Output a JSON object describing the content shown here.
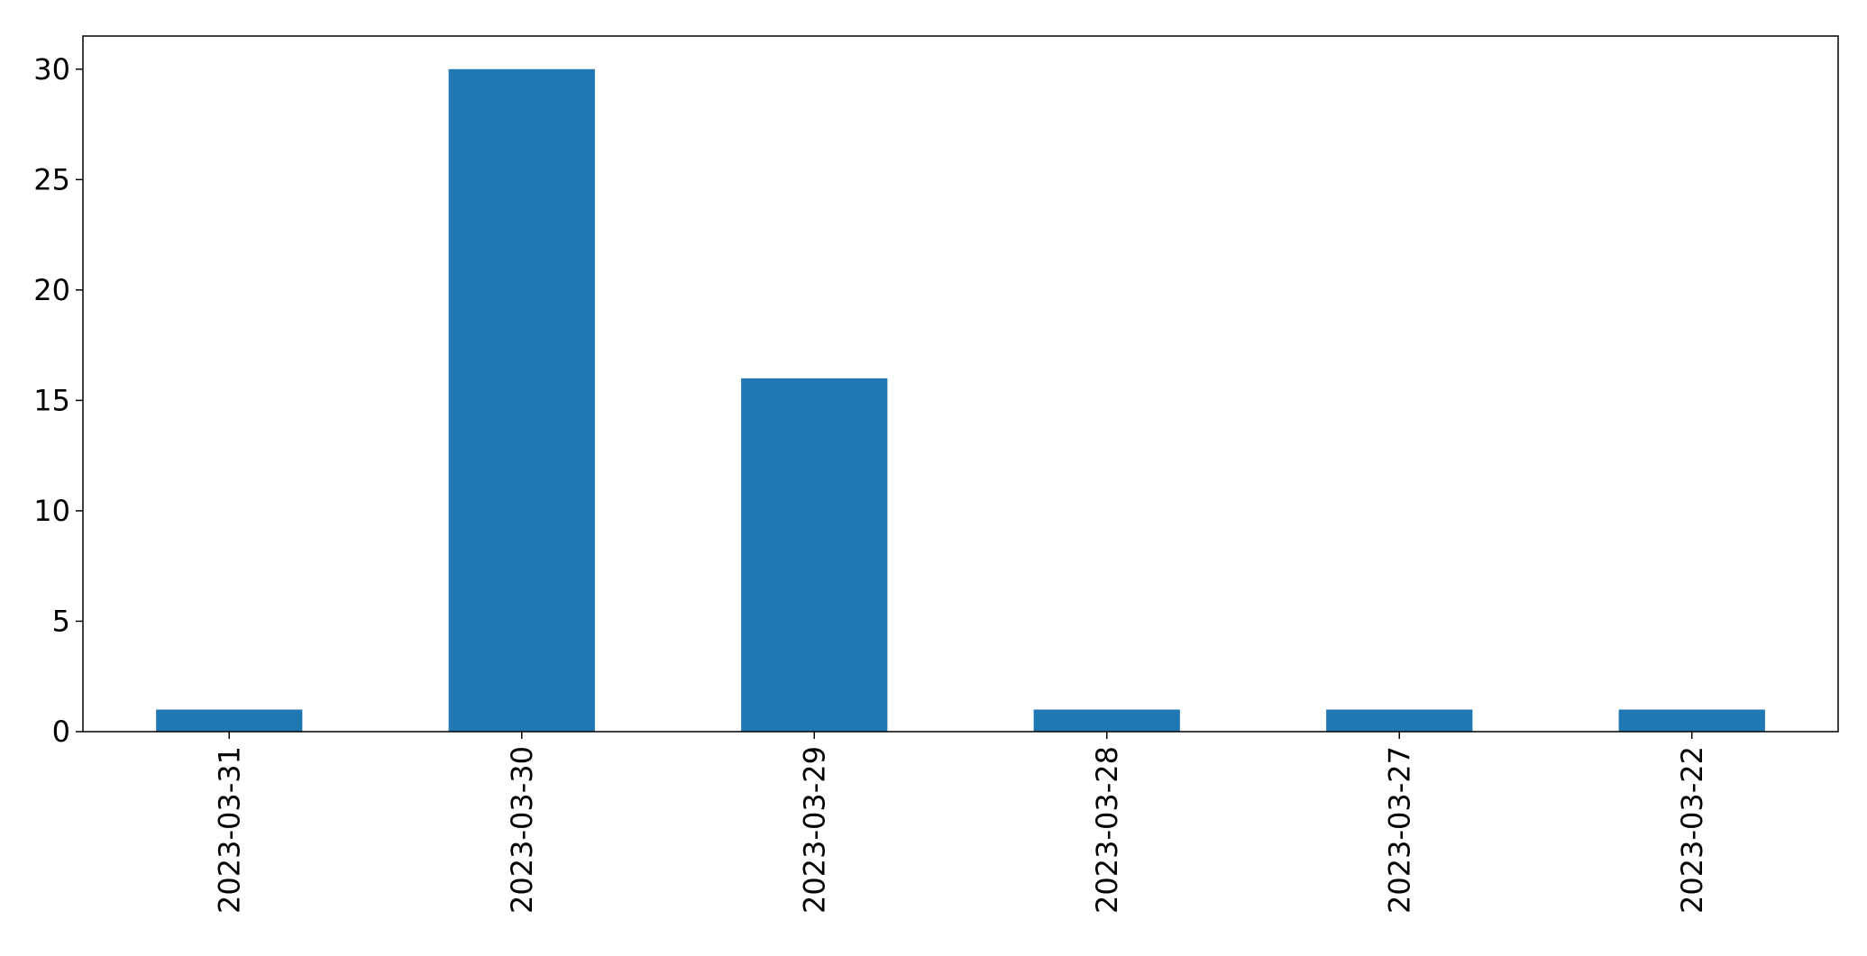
{
  "chart_data": {
    "type": "bar",
    "categories": [
      "2023-03-31",
      "2023-03-30",
      "2023-03-29",
      "2023-03-28",
      "2023-03-27",
      "2023-03-22"
    ],
    "values": [
      1,
      30,
      16,
      1,
      1,
      1
    ],
    "title": "",
    "xlabel": "",
    "ylabel": "",
    "ylim": [
      0,
      31.5
    ],
    "yticks": [
      0,
      5,
      10,
      15,
      20,
      25,
      30
    ],
    "grid": false,
    "legend": "none",
    "bar_color": "#1f77b4"
  }
}
